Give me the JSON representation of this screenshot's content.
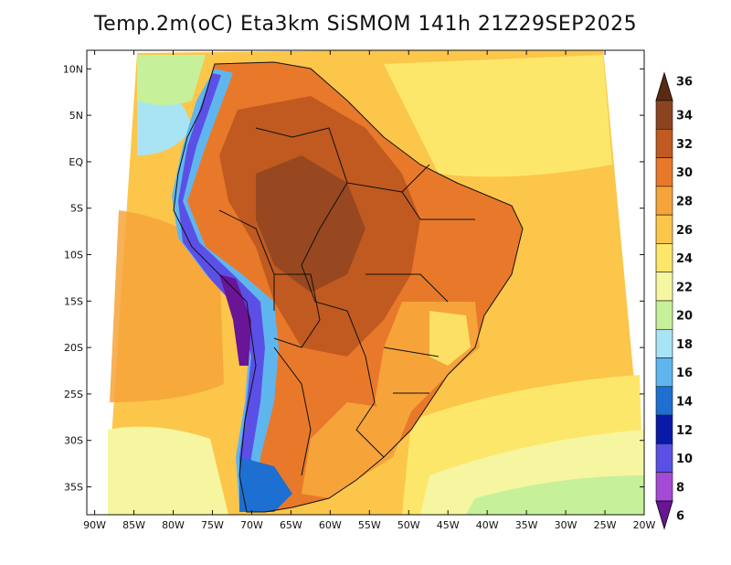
{
  "title": "Temp.2m(oC) Eta3km SiSMOM 141h 21Z29SEP2025",
  "map": {
    "projection": "lon-lat",
    "lon_range": [
      -91,
      -20
    ],
    "lat_range": [
      -38,
      12
    ],
    "lon_ticks": [
      {
        "value": -90,
        "label": "90W"
      },
      {
        "value": -85,
        "label": "85W"
      },
      {
        "value": -80,
        "label": "80W"
      },
      {
        "value": -75,
        "label": "75W"
      },
      {
        "value": -70,
        "label": "70W"
      },
      {
        "value": -65,
        "label": "65W"
      },
      {
        "value": -60,
        "label": "60W"
      },
      {
        "value": -55,
        "label": "55W"
      },
      {
        "value": -50,
        "label": "50W"
      },
      {
        "value": -45,
        "label": "45W"
      },
      {
        "value": -40,
        "label": "40W"
      },
      {
        "value": -35,
        "label": "35W"
      },
      {
        "value": -30,
        "label": "30W"
      },
      {
        "value": -25,
        "label": "25W"
      },
      {
        "value": -20,
        "label": "20W"
      }
    ],
    "lat_ticks": [
      {
        "value": 10,
        "label": "10N"
      },
      {
        "value": 5,
        "label": "5N"
      },
      {
        "value": 0,
        "label": "EQ"
      },
      {
        "value": -5,
        "label": "5S"
      },
      {
        "value": -10,
        "label": "10S"
      },
      {
        "value": -15,
        "label": "15S"
      },
      {
        "value": -20,
        "label": "20S"
      },
      {
        "value": -25,
        "label": "25S"
      },
      {
        "value": -30,
        "label": "30S"
      },
      {
        "value": -35,
        "label": "35S"
      }
    ]
  },
  "colorbar": {
    "unit": "oC",
    "levels": [
      {
        "label": "36",
        "color": "#5a2a12"
      },
      {
        "label": "34",
        "color": "#8c4420"
      },
      {
        "label": "32",
        "color": "#c05a20"
      },
      {
        "label": "30",
        "color": "#e8792a"
      },
      {
        "label": "28",
        "color": "#f6a33a"
      },
      {
        "label": "26",
        "color": "#fbc64a"
      },
      {
        "label": "24",
        "color": "#fde76a"
      },
      {
        "label": "22",
        "color": "#f6f6a0"
      },
      {
        "label": "20",
        "color": "#c6f09a"
      },
      {
        "label": "18",
        "color": "#a9e4f4"
      },
      {
        "label": "16",
        "color": "#5fb6ee"
      },
      {
        "label": "14",
        "color": "#1e6fd2"
      },
      {
        "label": "12",
        "color": "#0a1aa8"
      },
      {
        "label": "10",
        "color": "#5b50e6"
      },
      {
        "label": "8",
        "color": "#a54ad6"
      },
      {
        "label": "6",
        "color": "#6a1496"
      }
    ]
  },
  "colors": {
    "ocean_warm": "#fbc64a",
    "ocean_mid": "#fde76a",
    "ocean_cool": "#f6f6a0",
    "land_hot": "#e8792a",
    "land_very_hot": "#c05a20",
    "andes_cold": "#6a1496",
    "border": "#111111"
  }
}
